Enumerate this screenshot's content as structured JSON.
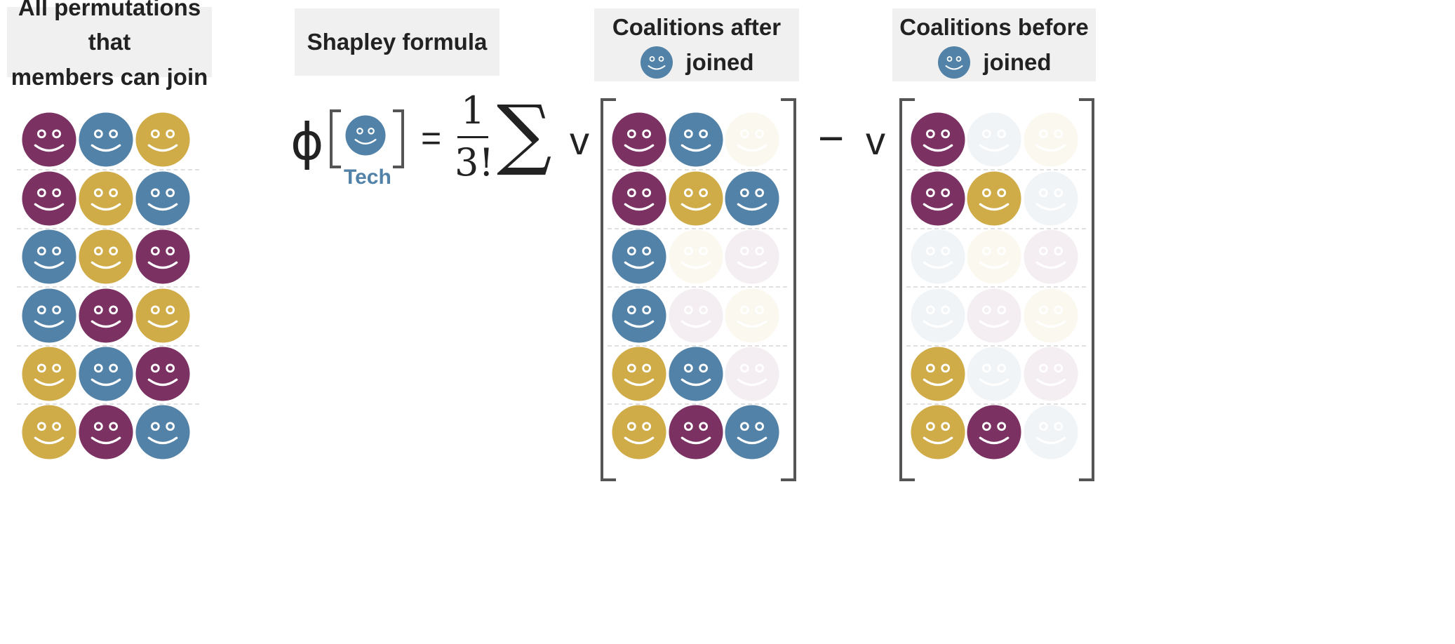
{
  "colors": {
    "purple": "#7b3263",
    "blue": "#5282a7",
    "gold": "#cfac48",
    "header_bg": "#f0f0f0"
  },
  "headers": {
    "permutations": {
      "line1": "All permutations that",
      "line2": "members can join"
    },
    "formula": {
      "label": "Shapley formula"
    },
    "after": {
      "line1": "Coalitions after",
      "line2": "joined",
      "icon": "blue-face-icon"
    },
    "before": {
      "line1": "Coalitions before",
      "line2": "joined",
      "icon": "blue-face-icon"
    }
  },
  "formula": {
    "phi": "ϕ",
    "player_label": "Tech",
    "equals": "=",
    "numerator": "1",
    "denominator": "3!",
    "sigma": "∑",
    "v_after": "v",
    "minus": "−",
    "v_before": "v"
  },
  "permutations": [
    [
      "purple",
      "blue",
      "gold"
    ],
    [
      "purple",
      "gold",
      "blue"
    ],
    [
      "blue",
      "gold",
      "purple"
    ],
    [
      "blue",
      "purple",
      "gold"
    ],
    [
      "gold",
      "blue",
      "purple"
    ],
    [
      "gold",
      "purple",
      "blue"
    ]
  ],
  "after_visibility": [
    [
      true,
      true,
      false
    ],
    [
      true,
      true,
      true
    ],
    [
      true,
      false,
      false
    ],
    [
      true,
      false,
      false
    ],
    [
      true,
      true,
      false
    ],
    [
      true,
      true,
      true
    ]
  ],
  "before_visibility": [
    [
      true,
      false,
      false
    ],
    [
      true,
      true,
      false
    ],
    [
      false,
      false,
      false
    ],
    [
      false,
      false,
      false
    ],
    [
      true,
      false,
      false
    ],
    [
      true,
      true,
      false
    ]
  ]
}
